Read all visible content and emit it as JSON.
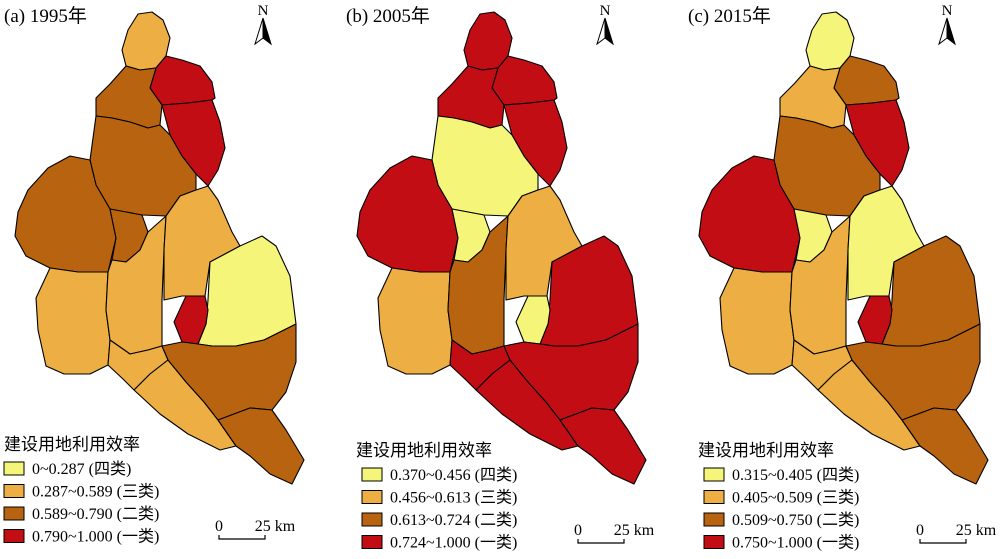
{
  "colors": {
    "c4": "#F5F57A",
    "c3": "#EDAE43",
    "c2": "#B8630F",
    "c1": "#C30D15"
  },
  "panels": [
    {
      "title": "(a) 1995年",
      "north": "N",
      "legend_title": "建设用地利用效率",
      "legend": [
        {
          "label": "0~0.287 (四类)",
          "cls": "c4"
        },
        {
          "label": "0.287~0.589 (三类)",
          "cls": "c3"
        },
        {
          "label": "0.589~0.790 (二类)",
          "cls": "c2"
        },
        {
          "label": "0.790~1.000 (一类)",
          "cls": "c1"
        }
      ],
      "scale": {
        "zero": "0",
        "label": "25 km"
      },
      "region_classes": [
        "c3",
        "c1",
        "c1",
        "c2",
        "c2",
        "c2",
        "c2",
        "c3",
        "c3",
        "c3",
        "c3",
        "c3",
        "c4",
        "c1",
        "c2",
        "c2"
      ]
    },
    {
      "title": "(b) 2005年",
      "north": "N",
      "legend_title": "建设用地利用效率",
      "legend": [
        {
          "label": "0.370~0.456 (四类)",
          "cls": "c4"
        },
        {
          "label": "0.456~0.613 (三类)",
          "cls": "c3"
        },
        {
          "label": "0.613~0.724 (二类)",
          "cls": "c2"
        },
        {
          "label": "0.724~1.000 (一类)",
          "cls": "c1"
        }
      ],
      "scale": {
        "zero": "0",
        "label": "25 km"
      },
      "region_classes": [
        "c1",
        "c1",
        "c1",
        "c1",
        "c4",
        "c1",
        "c4",
        "c3",
        "c2",
        "c3",
        "c1",
        "c1",
        "c1",
        "c4",
        "c1",
        "c1"
      ]
    },
    {
      "title": "(c) 2015年",
      "north": "N",
      "legend_title": "建设用地利用效率",
      "legend": [
        {
          "label": "0.315~0.405 (四类)",
          "cls": "c4"
        },
        {
          "label": "0.405~0.509 (三类)",
          "cls": "c3"
        },
        {
          "label": "0.509~0.750 (二类)",
          "cls": "c2"
        },
        {
          "label": "0.750~1.000 (一类)",
          "cls": "c1"
        }
      ],
      "scale": {
        "zero": "0",
        "label": "25 km"
      },
      "region_classes": [
        "c4",
        "c2",
        "c1",
        "c3",
        "c2",
        "c1",
        "c4",
        "c3",
        "c3",
        "c4",
        "c3",
        "c3",
        "c2",
        "c1",
        "c2",
        "c2"
      ]
    }
  ]
}
